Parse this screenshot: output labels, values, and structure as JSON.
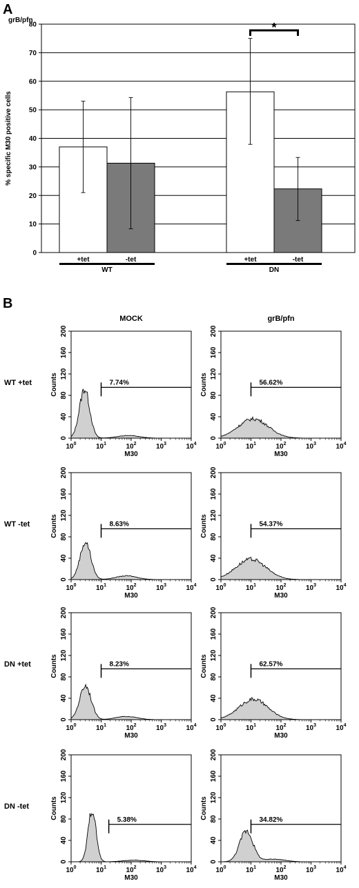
{
  "panel_a": {
    "letter": "A"
  },
  "panel_b": {
    "letter": "B"
  },
  "chart_data": [
    {
      "type": "bar",
      "title": "grB/pfn",
      "ylabel": "% specific M30 positive cells",
      "ylim": [
        0,
        80
      ],
      "yticks": [
        "0",
        "10",
        "20",
        "30",
        "40",
        "50",
        "60",
        "70",
        "80"
      ],
      "grid": true,
      "categories": [
        "+tet",
        "-tet",
        "+tet",
        "-tet"
      ],
      "groups": [
        {
          "name": "WT",
          "categories": [
            "+tet",
            "-tet"
          ]
        },
        {
          "name": "DN",
          "categories": [
            "+tet",
            "-tet"
          ]
        }
      ],
      "values": [
        37,
        31.3,
        56.3,
        22.3
      ],
      "error_low": [
        21,
        8.3,
        37.9,
        11.2
      ],
      "error_high": [
        53,
        54.3,
        75,
        33.3
      ],
      "bar_colors": [
        "#ffffff",
        "#7a7a7a",
        "#ffffff",
        "#7a7a7a"
      ],
      "significance": {
        "between": [
          2,
          3
        ],
        "label": "*"
      }
    },
    {
      "type": "area",
      "description_rows": [
        "WT +tet",
        "WT -tet",
        "DN +tet",
        "DN -tet"
      ],
      "columns": [
        "MOCK",
        "grB/pfn"
      ],
      "xlabel": "M30",
      "ylabel": "Counts",
      "x_scale": "log",
      "xlim": [
        1,
        10000
      ],
      "ylim": [
        0,
        200
      ],
      "yticks": [
        "0",
        "40",
        "80",
        "120",
        "160",
        "200"
      ],
      "xticks": [
        {
          "b": "10",
          "e": "0"
        },
        {
          "b": "10",
          "e": "1"
        },
        {
          "b": "10",
          "e": "2"
        },
        {
          "b": "10",
          "e": "3"
        },
        {
          "b": "10",
          "e": "4"
        }
      ],
      "fill_color": "#d0d0d0",
      "histograms": [
        {
          "row": "WT +tet",
          "column": "MOCK",
          "gate_percent": "7.74%",
          "gate_start": 10,
          "gate_level": 95,
          "peak_x": 2.8,
          "peak": 92,
          "width": 0.17,
          "tail": 5,
          "tail_x": 80
        },
        {
          "row": "WT +tet",
          "column": "grB/pfn",
          "gate_percent": "56.62%",
          "gate_start": 10,
          "gate_level": 95,
          "peak_x": 12,
          "peak": 36,
          "width": 0.5,
          "tail": 0,
          "tail_x": 0
        },
        {
          "row": "WT -tet",
          "column": "MOCK",
          "gate_percent": "8.63%",
          "gate_start": 10,
          "gate_level": 95,
          "peak_x": 3,
          "peak": 70,
          "width": 0.18,
          "tail": 7,
          "tail_x": 70
        },
        {
          "row": "WT -tet",
          "column": "grB/pfn",
          "gate_percent": "54.37%",
          "gate_start": 10,
          "gate_level": 95,
          "peak_x": 10,
          "peak": 38,
          "width": 0.5,
          "tail": 0,
          "tail_x": 0
        },
        {
          "row": "DN +tet",
          "column": "MOCK",
          "gate_percent": "8.23%",
          "gate_start": 10,
          "gate_level": 95,
          "peak_x": 3,
          "peak": 64,
          "width": 0.19,
          "tail": 6,
          "tail_x": 70
        },
        {
          "row": "DN +tet",
          "column": "grB/pfn",
          "gate_percent": "62.57%",
          "gate_start": 10,
          "gate_level": 95,
          "peak_x": 12,
          "peak": 38,
          "width": 0.48,
          "tail": 0,
          "tail_x": 0
        },
        {
          "row": "DN -tet",
          "column": "MOCK",
          "gate_percent": "5.38%",
          "gate_start": 18,
          "gate_level": 70,
          "peak_x": 5,
          "peak": 98,
          "width": 0.13,
          "tail": 3,
          "tail_x": 120
        },
        {
          "row": "DN -tet",
          "column": "grB/pfn",
          "gate_percent": "34.82%",
          "gate_start": 10,
          "gate_level": 70,
          "peak_x": 7,
          "peak": 58,
          "width": 0.22,
          "tail": 5,
          "tail_x": 60
        }
      ]
    }
  ]
}
